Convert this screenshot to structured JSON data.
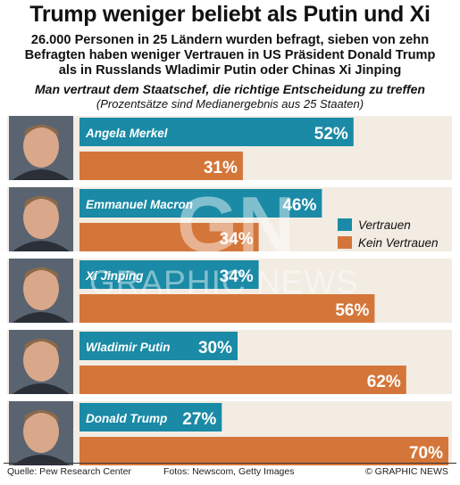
{
  "header": {
    "title": "Trump weniger beliebt als Putin und Xi",
    "subtitle_lines": [
      "26.000 Personen in 25 Ländern wurden befragt, sieben von zehn",
      "Befragten haben weniger Vertrauen in US Präsident Donald Trump",
      "als in Russlands Wladimir Putin oder Chinas Xi Jinping"
    ],
    "question": "Man vertraut dem Staatschef, die richtige Entscheidung zu treffen",
    "note": "(Prozentsätze sind Medianergebnis aus 25 Staaten)"
  },
  "footer": {
    "source": "Quelle: Pew Research Center",
    "photos": "Fotos: Newscom, Getty Images",
    "copyright": "© GRAPHIC NEWS"
  },
  "watermark": {
    "monogram": "GN",
    "text": "GRAPHIC NEWS"
  },
  "colors": {
    "trust": "#1a8aa6",
    "no_trust": "#d4763a",
    "row_background": "#f2ece3"
  },
  "chart_data": {
    "type": "bar",
    "orientation": "horizontal",
    "categories": [
      "Angela Merkel",
      "Emmanuel Macron",
      "Xi Jinping",
      "Wladimir Putin",
      "Donald Trump"
    ],
    "series": [
      {
        "name": "Vertrauen",
        "values": [
          52,
          46,
          34,
          30,
          27
        ],
        "labels": [
          "52%",
          "46%",
          "34%",
          "30%",
          "27%"
        ]
      },
      {
        "name": "Kein Vertrauen",
        "values": [
          31,
          34,
          56,
          62,
          70
        ],
        "labels": [
          "31%",
          "34%",
          "56%",
          "62%",
          "70%"
        ]
      }
    ],
    "legend": [
      "Vertrauen",
      "Kein Vertrauen"
    ],
    "legend_position": "right",
    "xlim": [
      0,
      70
    ],
    "grid": false
  }
}
